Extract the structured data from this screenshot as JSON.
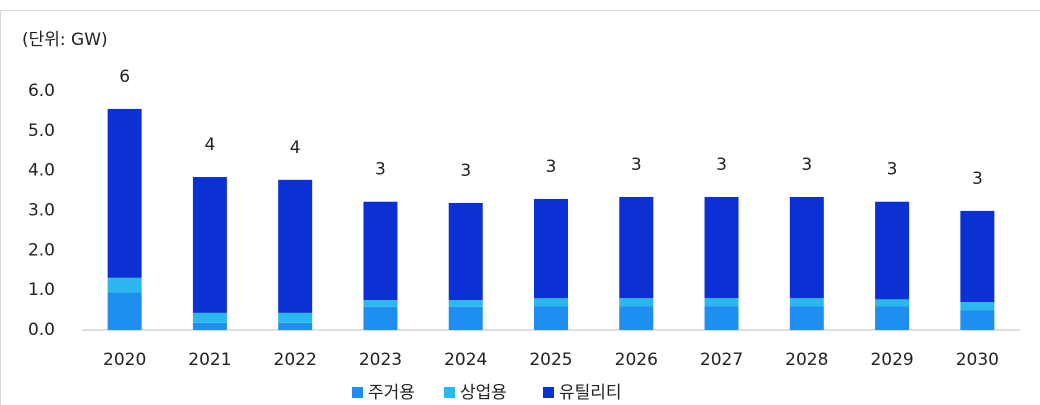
{
  "chart_data": {
    "type": "stacked_bar",
    "unit_label": "(단위: GW)",
    "categories": [
      "2020",
      "2021",
      "2022",
      "2023",
      "2024",
      "2025",
      "2026",
      "2027",
      "2028",
      "2029",
      "2030"
    ],
    "series": [
      {
        "name": "주거용",
        "color": "#1f8ef1",
        "values": [
          0.95,
          0.18,
          0.18,
          0.58,
          0.58,
          0.6,
          0.6,
          0.6,
          0.6,
          0.6,
          0.5
        ]
      },
      {
        "name": "상업용",
        "color": "#2bb8ef",
        "values": [
          0.36,
          0.25,
          0.25,
          0.17,
          0.17,
          0.2,
          0.2,
          0.2,
          0.2,
          0.17,
          0.2
        ]
      },
      {
        "name": "유틸리티",
        "color": "#0b31d4",
        "values": [
          4.24,
          3.41,
          3.34,
          2.47,
          2.44,
          2.49,
          2.54,
          2.54,
          2.54,
          2.45,
          2.29
        ]
      }
    ],
    "total_labels": [
      "6",
      "4",
      "4",
      "3",
      "3",
      "3",
      "3",
      "3",
      "3",
      "3",
      "3"
    ],
    "ylim": [
      0,
      6
    ],
    "yticks": [
      {
        "value": 0,
        "label": "0.0"
      },
      {
        "value": 1,
        "label": "1.0"
      },
      {
        "value": 2,
        "label": "2.0"
      },
      {
        "value": 3,
        "label": "3.0"
      },
      {
        "value": 4,
        "label": "4.0"
      },
      {
        "value": 5,
        "label": "5.0"
      },
      {
        "value": 6,
        "label": "6.0"
      }
    ],
    "legend": "bottom"
  }
}
